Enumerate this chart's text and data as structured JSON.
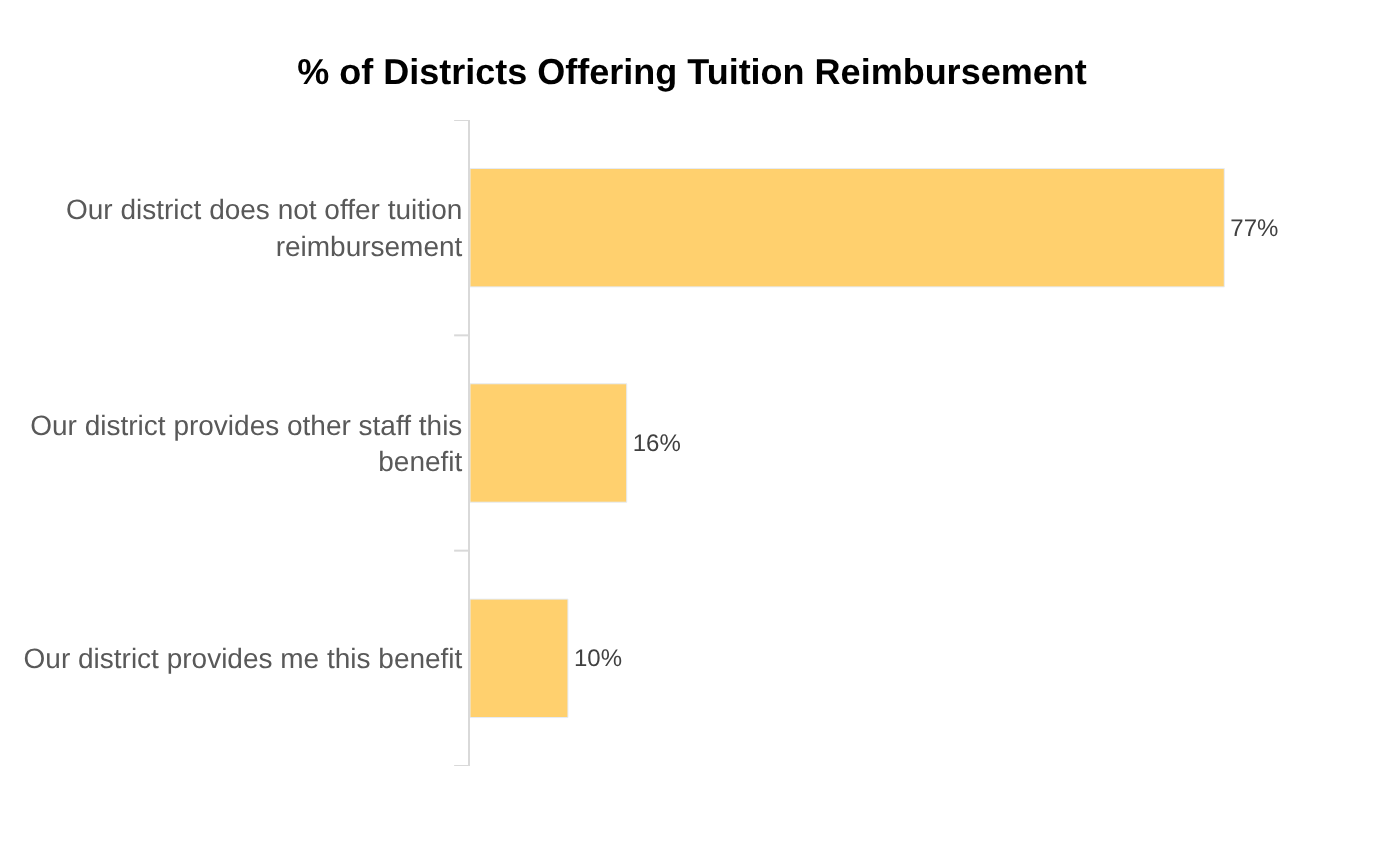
{
  "chart_data": {
    "type": "bar",
    "orientation": "horizontal",
    "title": "% of Districts Offering Tuition Reimbursement",
    "categories": [
      "Our district does not offer tuition reimbursement",
      "Our district provides other staff this benefit",
      "Our district provides me this benefit"
    ],
    "values": [
      77,
      16,
      10
    ],
    "value_labels": [
      "77%",
      "16%",
      "10%"
    ],
    "color": "#ffd06e",
    "legend": false
  }
}
